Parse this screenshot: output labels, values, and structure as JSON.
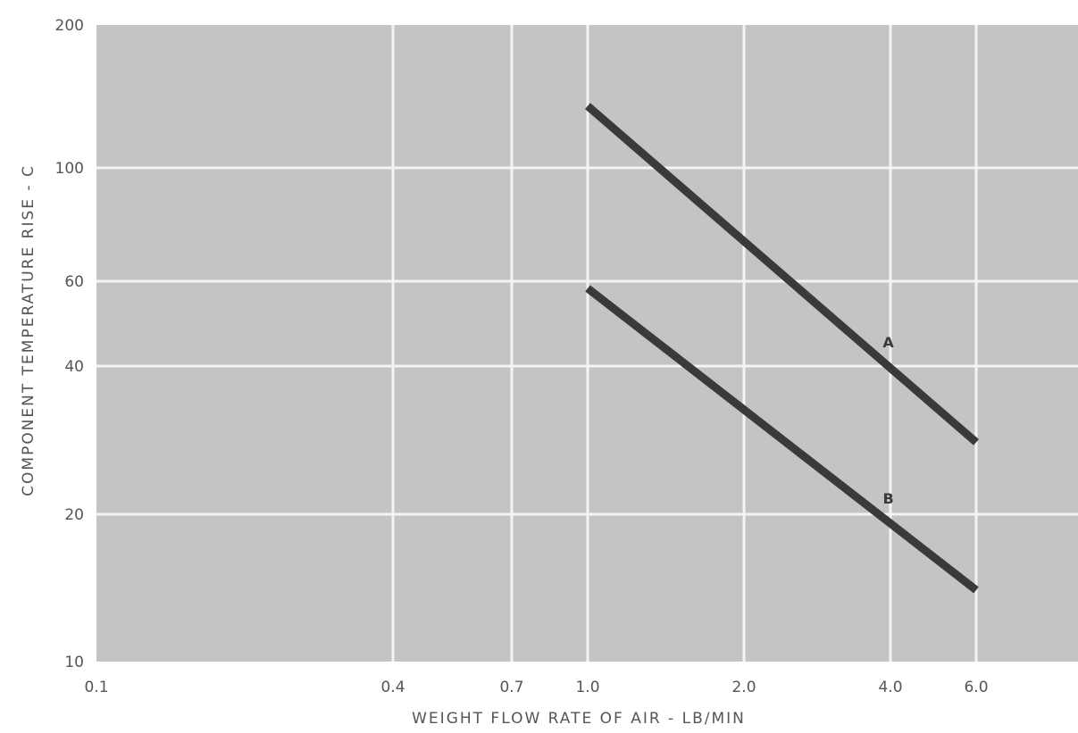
{
  "chart_data": {
    "type": "line",
    "xlabel": "WEIGHT FLOW RATE OF AIR - LB/MIN",
    "ylabel": "COMPONENT TEMPERATURE RISE - C",
    "x_scale": "log",
    "y_scale": "log",
    "xlim": [
      0.1,
      8.5
    ],
    "ylim": [
      10,
      200
    ],
    "x_ticks": [
      {
        "value": 0.1,
        "label": "0.1"
      },
      {
        "value": 0.4,
        "label": "0.4"
      },
      {
        "value": 0.7,
        "label": "0.7"
      },
      {
        "value": 1.0,
        "label": "1.0"
      },
      {
        "value": 2.0,
        "label": "2.0"
      },
      {
        "value": 4.0,
        "label": "4.0"
      },
      {
        "value": 6.0,
        "label": "6.0"
      }
    ],
    "y_ticks": [
      {
        "value": 10,
        "label": "10"
      },
      {
        "value": 20,
        "label": "20"
      },
      {
        "value": 40,
        "label": "40"
      },
      {
        "value": 60,
        "label": "60"
      },
      {
        "value": 100,
        "label": "100"
      },
      {
        "value": 200,
        "label": "200"
      }
    ],
    "grid": true,
    "series": [
      {
        "name": "A",
        "x": [
          1.0,
          6.0
        ],
        "y": [
          135,
          28
        ]
      },
      {
        "name": "B",
        "x": [
          1.0,
          6.0
        ],
        "y": [
          58,
          14
        ]
      }
    ],
    "colors": {
      "plot_background": "#c4c4c4",
      "grid": "#f4f4f4",
      "series": "#3a3a3a",
      "text": "#555555"
    }
  }
}
